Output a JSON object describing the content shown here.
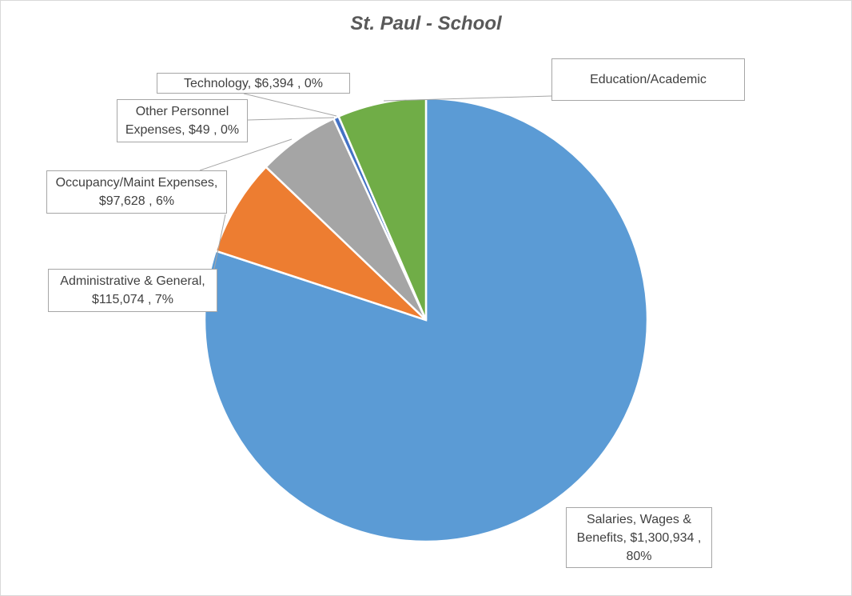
{
  "chart_data": {
    "type": "pie",
    "title": "St. Paul - School",
    "slices": [
      {
        "category": "Salaries, Wages & Benefits",
        "value": 1300934,
        "percent": "80%",
        "color": "#5b9bd5",
        "label_text": "Salaries, Wages &\nBenefits,  $1,300,934 ,\n80%"
      },
      {
        "category": "Administrative & General",
        "value": 115074,
        "percent": "7%",
        "color": "#ed7d31",
        "label_text": "Administrative & General,\n$115,074 , 7%"
      },
      {
        "category": "Occupancy/Maint Expenses",
        "value": 97628,
        "percent": "6%",
        "color": "#a5a5a5",
        "label_text": "Occupancy/Maint Expenses,\n$97,628 , 6%"
      },
      {
        "category": "Other Personnel Expenses",
        "value": 49,
        "percent": "0%",
        "color": "#ffc000",
        "label_text": "Other Personnel\nExpenses,  $49 , 0%"
      },
      {
        "category": "Technology",
        "value": 6394,
        "percent": "0%",
        "color": "#4472c4",
        "label_text": "Technology,  $6,394 , 0%"
      },
      {
        "category": "Education/Academic",
        "value": 105000,
        "percent": "",
        "color": "#70ad47",
        "label_text": "Education/Academic"
      }
    ],
    "legend": "none",
    "data_labels": "callouts"
  }
}
